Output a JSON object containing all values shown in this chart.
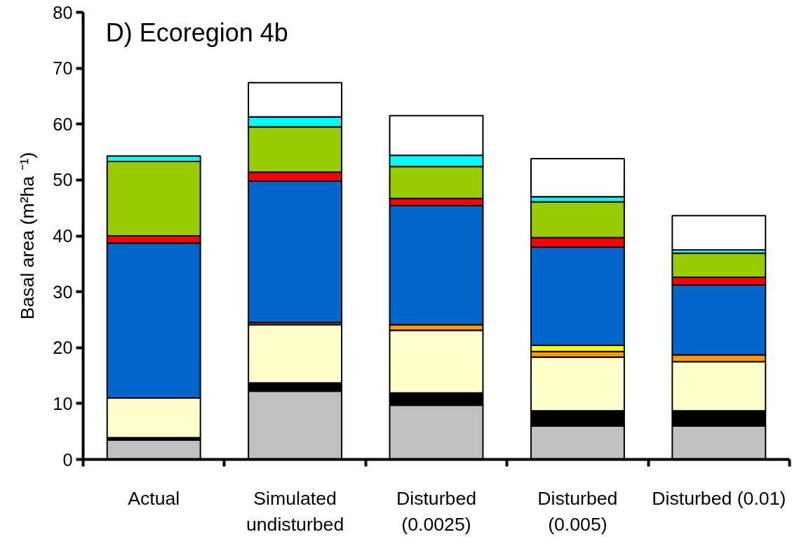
{
  "chart_data": {
    "type": "bar",
    "title": "D) Ecoregion 4b",
    "ylabel": "Basal area (m²ha ⁻¹)",
    "stacked": true,
    "categories": [
      "Actual",
      "Simulated\nundisturbed",
      "Disturbed\n(0.0025)",
      "Disturbed\n(0.005)",
      "Disturbed (0.01)"
    ],
    "series": [
      {
        "color": "#c0c0c0",
        "values": [
          3.5,
          12.2,
          9.7,
          6.0,
          6.0
        ]
      },
      {
        "color": "#000000",
        "values": [
          0.4,
          1.5,
          2.2,
          2.7,
          2.7
        ]
      },
      {
        "color": "#ffffcc",
        "values": [
          7.1,
          10.4,
          11.2,
          9.6,
          8.8
        ]
      },
      {
        "color": "#ff9900",
        "values": [
          null,
          0.4,
          1.0,
          1.0,
          1.2
        ]
      },
      {
        "color": "#ffff00",
        "values": [
          null,
          null,
          null,
          1.1,
          null
        ]
      },
      {
        "color": "#0066cc",
        "values": [
          27.7,
          25.3,
          21.3,
          17.6,
          12.5
        ]
      },
      {
        "color": "#ff0000",
        "values": [
          1.3,
          1.6,
          1.3,
          1.7,
          1.4
        ]
      },
      {
        "color": "#99cc00",
        "values": [
          13.3,
          8.1,
          5.7,
          6.4,
          4.3
        ]
      },
      {
        "color": "#00ffff",
        "values": [
          1.0,
          1.8,
          2.0,
          0.9,
          0.6
        ]
      },
      {
        "color": "#ffffff",
        "values": [
          null,
          6.1,
          7.1,
          6.8,
          6.1
        ]
      }
    ],
    "ylim": [
      0,
      80
    ],
    "yticks": [
      0,
      10,
      20,
      30,
      40,
      50,
      60,
      70,
      80
    ],
    "grid": false
  }
}
